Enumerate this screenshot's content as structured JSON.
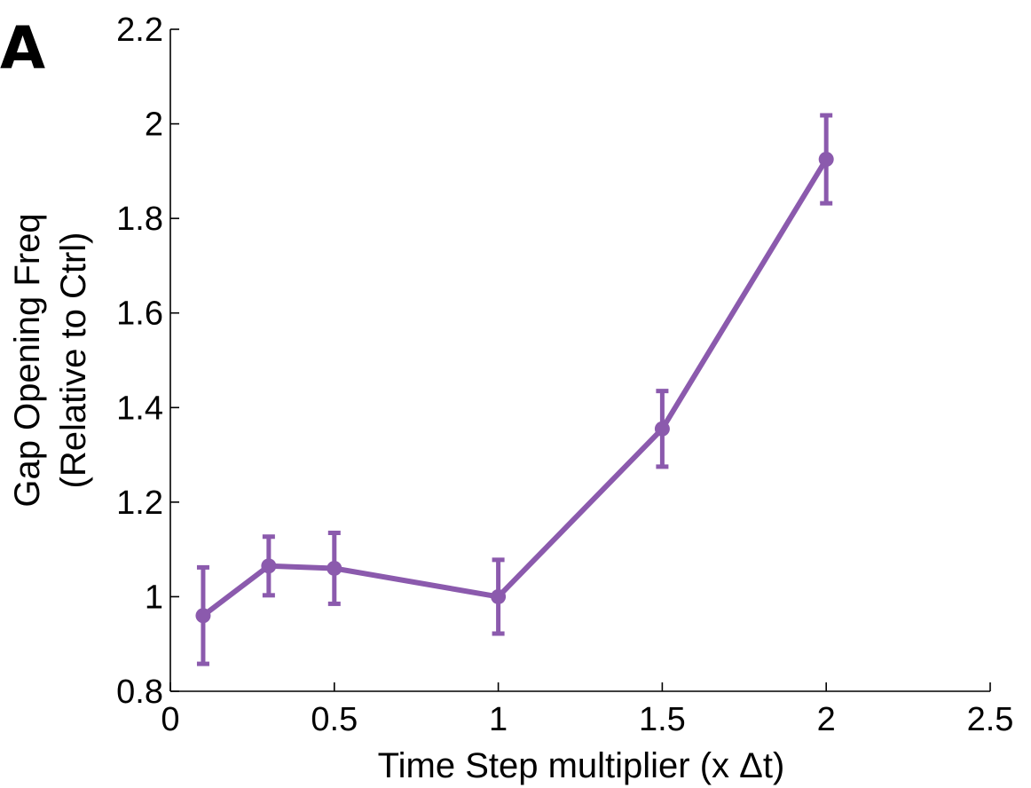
{
  "panel_label": "A",
  "chart_data": {
    "type": "line",
    "title": "",
    "xlabel": "Time Step multiplier (x Δt)",
    "ylabel_lines": [
      "Gap Opening Freq",
      "(Relative to Ctrl)"
    ],
    "xlim": [
      0,
      2.5
    ],
    "ylim": [
      0.8,
      2.2
    ],
    "xticks": [
      0,
      0.5,
      1,
      1.5,
      2,
      2.5
    ],
    "xtick_labels": [
      "0",
      "0.5",
      "1",
      "1.5",
      "2",
      "2.5"
    ],
    "yticks": [
      0.8,
      1.0,
      1.2,
      1.4,
      1.6,
      1.8,
      2.0,
      2.2
    ],
    "ytick_labels": [
      "0.8",
      "1",
      "1.2",
      "1.4",
      "1.6",
      "1.8",
      "2",
      "2.2"
    ],
    "grid": false,
    "legend": "none",
    "color": "#8b5aad",
    "series": [
      {
        "x": [
          0.1,
          0.3,
          0.5,
          1.0,
          1.5,
          2.0
        ],
        "y": [
          0.96,
          1.065,
          1.06,
          1.0,
          1.355,
          1.925
        ],
        "yerr": [
          0.102,
          0.062,
          0.075,
          0.078,
          0.08,
          0.093
        ]
      }
    ]
  }
}
